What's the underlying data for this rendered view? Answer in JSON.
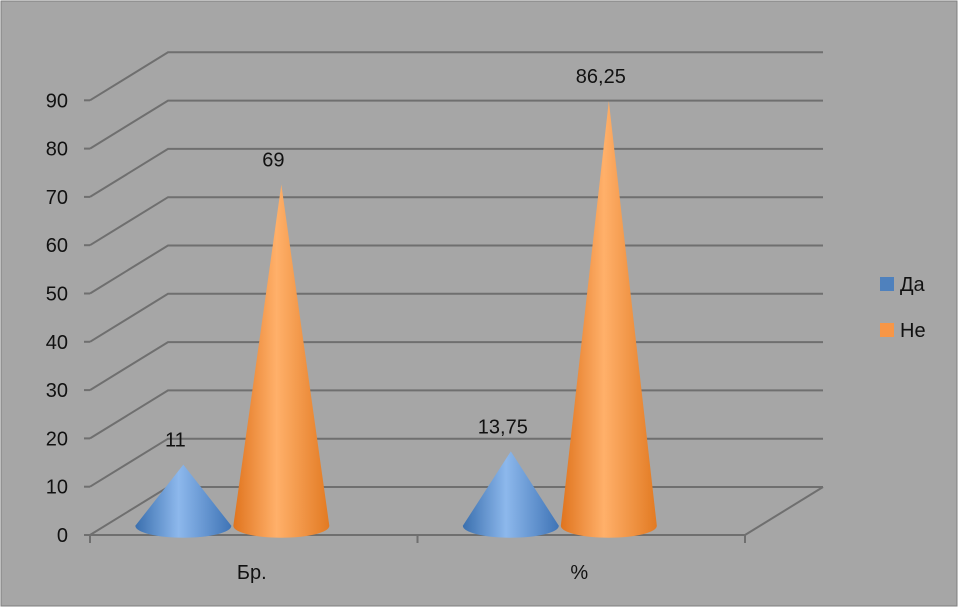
{
  "chart_data": {
    "type": "bar",
    "shape": "cone-3d",
    "title": "",
    "xlabel": "",
    "ylabel": "",
    "categories": [
      "Бр.",
      "%"
    ],
    "series": [
      {
        "name": "Да",
        "values": [
          11,
          13.75
        ],
        "labels": [
          "11",
          "13,75"
        ],
        "color": "#4F81BD"
      },
      {
        "name": "Не",
        "values": [
          69,
          86.25
        ],
        "labels": [
          "69",
          "86,25"
        ],
        "color": "#F79646"
      }
    ],
    "ylim": [
      0,
      90
    ],
    "yticks": [
      "0",
      "10",
      "20",
      "30",
      "40",
      "50",
      "60",
      "70",
      "80",
      "90"
    ],
    "grid": true,
    "legend_position": "right",
    "background_color": "#A6A6A6"
  }
}
